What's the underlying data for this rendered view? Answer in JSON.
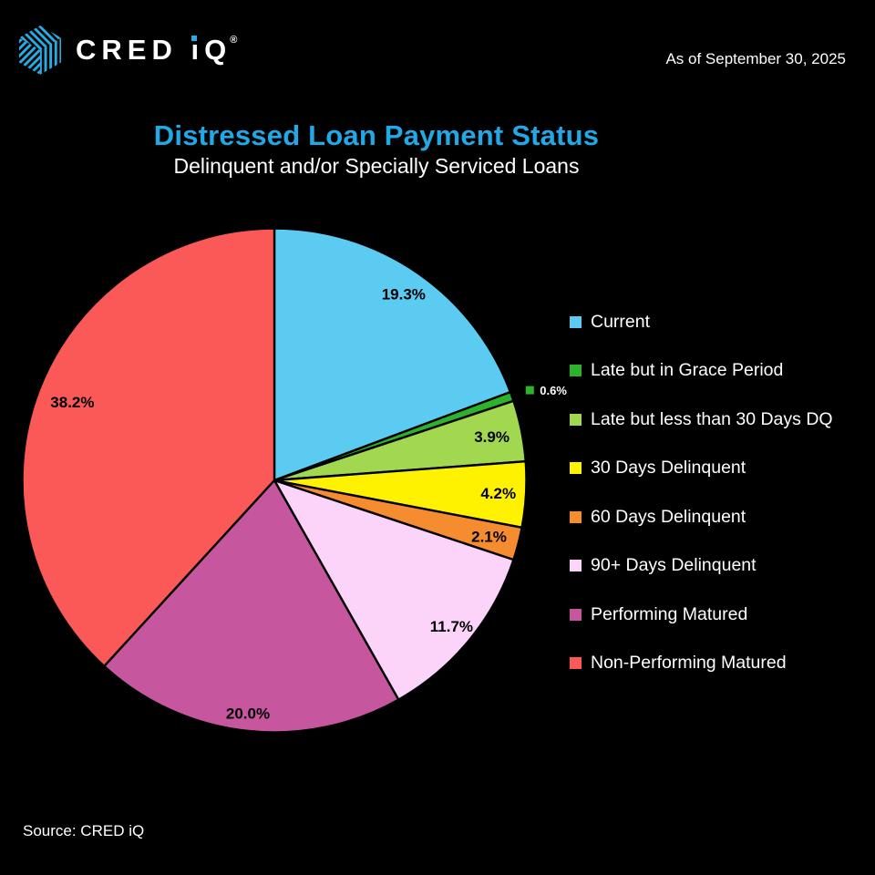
{
  "header": {
    "logo_text": "CRED iQ",
    "registered_mark": "®",
    "as_of": "As of September 30, 2025"
  },
  "title": "Distressed Loan Payment Status",
  "subtitle": "Delinquent and/or Specially Serviced Loans",
  "source": "Source: CRED iQ",
  "colors": {
    "background": "#000000",
    "title": "#21A8E6",
    "logo_accent": "#29ABE2",
    "text": "#FFFFFF",
    "slice_border": "#000000"
  },
  "chart_data": {
    "type": "pie",
    "title": "Distressed Loan Payment Status",
    "subtitle": "Delinquent and/or Specially Serviced Loans",
    "start_angle_deg": 0,
    "direction": "clockwise",
    "legend_position": "right",
    "labels": [
      "Current",
      "Late but in Grace Period",
      "Late but less than 30 Days DQ",
      "30 Days Delinquent",
      "60 Days Delinquent",
      "90+ Days Delinquent",
      "Performing Matured",
      "Non-Performing Matured"
    ],
    "values": [
      19.3,
      0.6,
      3.9,
      4.2,
      2.1,
      11.7,
      20.0,
      38.2
    ],
    "value_labels": [
      "19.3%",
      "0.6%",
      "3.9%",
      "4.2%",
      "2.1%",
      "11.7%",
      "20.0%",
      "38.2%"
    ],
    "colors": [
      "#5CCBF1",
      "#2DB22D",
      "#A2D84F",
      "#FFF200",
      "#F68C30",
      "#FCD3F9",
      "#C6579F",
      "#FB5858"
    ],
    "label_distances": [
      0.9,
      1.075,
      0.88,
      0.89,
      0.88,
      0.91,
      0.93,
      0.86
    ],
    "outside_label_indexes": [
      1
    ]
  }
}
